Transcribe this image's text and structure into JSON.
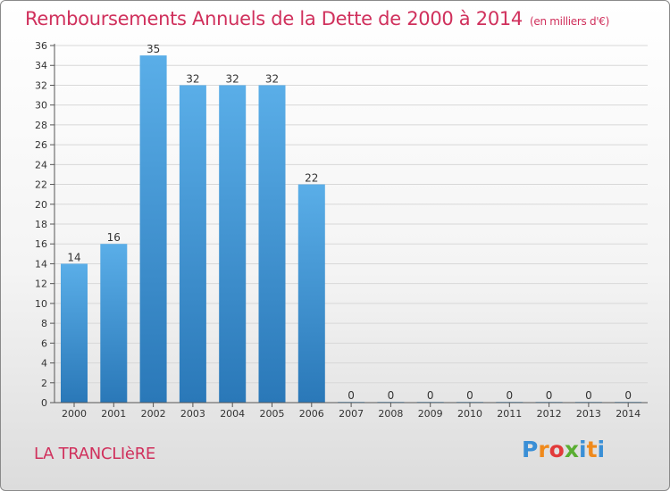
{
  "title": "Remboursements Annuels de la Dette de 2000 à 2014",
  "subtitle": "(en milliers d'€)",
  "commune": "LA TRANCLIèRE",
  "logo": {
    "text": "Proxiti",
    "colors": [
      "#3a8fd6",
      "#f08a1c",
      "#e23a3a",
      "#5aae32",
      "#3a8fd6",
      "#f08a1c",
      "#3a8fd6"
    ]
  },
  "colors": {
    "accent": "#d0305c",
    "bar_top": "#5aaee8",
    "bar_bottom": "#2a78b8",
    "grid": "#d8d8d8",
    "axis": "#555555"
  },
  "chart_data": {
    "type": "bar",
    "categories": [
      "2000",
      "2001",
      "2002",
      "2003",
      "2004",
      "2005",
      "2006",
      "2007",
      "2008",
      "2009",
      "2010",
      "2011",
      "2012",
      "2013",
      "2014"
    ],
    "values": [
      14,
      16,
      35,
      32,
      32,
      32,
      22,
      0,
      0,
      0,
      0,
      0,
      0,
      0,
      0
    ],
    "ylim": [
      0,
      36
    ],
    "yticks": [
      0,
      2,
      4,
      6,
      8,
      10,
      12,
      14,
      16,
      18,
      20,
      22,
      24,
      26,
      28,
      30,
      32,
      34,
      36
    ],
    "grid": true,
    "data_labels": true
  }
}
